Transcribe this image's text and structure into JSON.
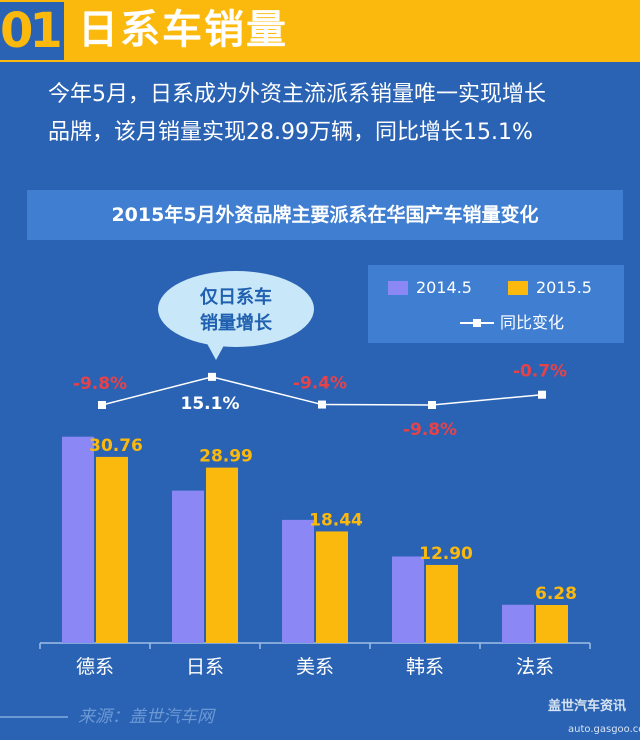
{
  "header": {
    "number": "01",
    "title": "日系车销量"
  },
  "intro": {
    "line1": "今年5月，日系成为外资主流派系销量唯一实现增长",
    "line2": "品牌，该月销量实现28.99万辆，同比增长15.1%"
  },
  "callout": {
    "line1": "仅日系车",
    "line2": "销量增长"
  },
  "footer": {
    "source": "来源：盖世汽车网"
  },
  "watermark": {
    "brand": "盖世汽车资讯",
    "url": "auto.gasgoo.com"
  },
  "colors": {
    "series_2014": "#8b88f5",
    "series_2015": "#fcb90d",
    "negative": "#e6424a",
    "positive": "#ffffff",
    "background": "#2a63b3"
  },
  "chart_data": {
    "type": "bar",
    "title": "2015年5月外资品牌主要派系在华国产车销量变化",
    "categories": [
      "德系",
      "日系",
      "美系",
      "韩系",
      "法系"
    ],
    "series": [
      {
        "name": "2014.5",
        "values": [
          34.1,
          25.19,
          20.35,
          14.3,
          6.32
        ]
      },
      {
        "name": "2015.5",
        "values": [
          30.76,
          28.99,
          18.44,
          12.9,
          6.28
        ],
        "labels": [
          "30.76",
          "28.99",
          "18.44",
          "12.90",
          "6.28"
        ]
      }
    ],
    "line_series": {
      "name": "同比变化",
      "values": [
        -9.8,
        15.1,
        -9.4,
        -9.8,
        -0.7
      ],
      "labels": [
        "-9.8%",
        "15.1%",
        "-9.4%",
        "-9.8%",
        "-0.7%"
      ]
    },
    "legend": "top-right",
    "grid": false
  }
}
